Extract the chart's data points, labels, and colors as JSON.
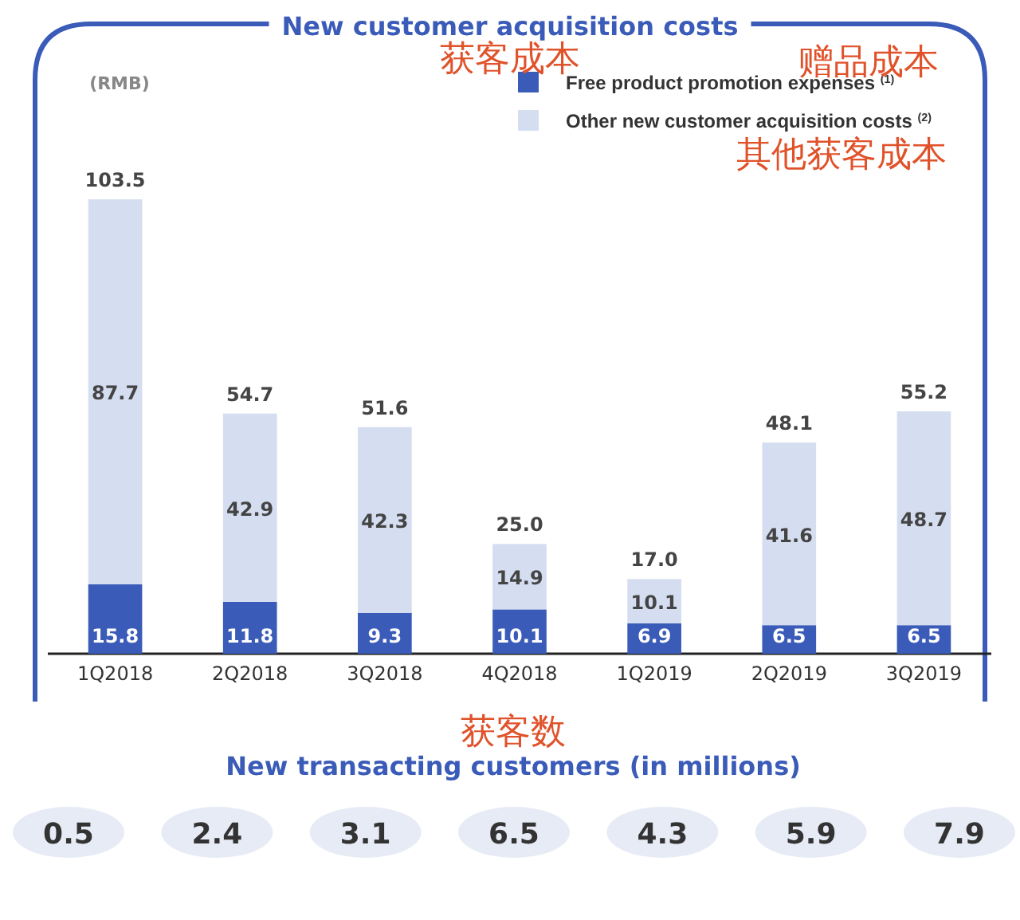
{
  "chart_data": [
    {
      "type": "bar",
      "title": "New customer acquisition costs",
      "stacked": true,
      "data_labels": true,
      "legend": "top right",
      "tick_labels": "x",
      "categories": [
        "1Q2018",
        "2Q2018",
        "3Q2018",
        "4Q2018",
        "1Q2019",
        "2Q2019",
        "3Q2019"
      ],
      "series": [
        {
          "name": "Free product promotion expenses $^{(1)}$",
          "color": "#3a5bb8",
          "values": [
            15.8,
            11.8,
            9.3,
            10.1,
            6.9,
            6.5,
            6.5
          ]
        },
        {
          "name": "Other new customer acquisition costs $^{(2)}$",
          "color": "#d5ddf0",
          "values": [
            87.7,
            42.9,
            42.3,
            14.9,
            10.1,
            41.6,
            48.7
          ]
        }
      ],
      "totals": [
        "103.5",
        "54.7",
        "51.6",
        "25.0",
        "17.0",
        "48.1",
        "55.2"
      ],
      "annotations": [
        "(RMB)",
        "获客成本",
        "赠品成本",
        "其他获客成本"
      ]
    },
    {
      "type": "other",
      "title": "New transacting customers (in millions)",
      "annotations": [
        "获客数"
      ],
      "data_labels": true,
      "values": [
        0.5,
        2.4,
        3.1,
        6.5,
        4.3,
        5.9,
        7.9
      ]
    }
  ]
}
